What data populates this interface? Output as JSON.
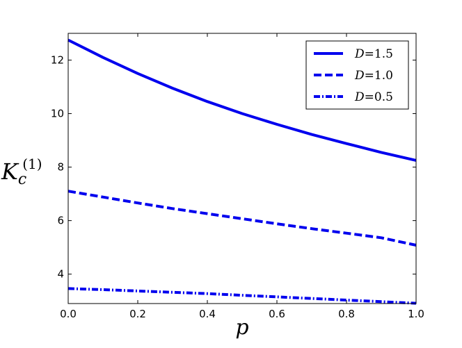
{
  "chart_data": {
    "type": "line",
    "title": "",
    "xlabel": "p",
    "ylabel": {
      "main": "K",
      "sub": "c",
      "sup": "(1)"
    },
    "xlim": [
      0.0,
      1.0
    ],
    "ylim": [
      2.9,
      13.0
    ],
    "xticks": [
      "0.0",
      "0.2",
      "0.4",
      "0.6",
      "0.8",
      "1.0"
    ],
    "yticks": [
      "4",
      "6",
      "8",
      "10",
      "12"
    ],
    "grid": false,
    "legend_position": "top-right",
    "color": "#0000ee",
    "x": [
      0.0,
      0.1,
      0.2,
      0.3,
      0.4,
      0.5,
      0.6,
      0.7,
      0.8,
      0.9,
      1.0
    ],
    "series": [
      {
        "name": "D = 1.5",
        "legend": {
          "var": "D",
          "eq": "=",
          "val": "1.5"
        },
        "style": "solid",
        "values": [
          12.75,
          12.1,
          11.5,
          10.95,
          10.45,
          10.0,
          9.6,
          9.22,
          8.88,
          8.55,
          8.25
        ]
      },
      {
        "name": "D = 1.0",
        "legend": {
          "var": "D",
          "eq": "=",
          "val": "1.0"
        },
        "style": "dashed",
        "values": [
          7.1,
          6.88,
          6.66,
          6.45,
          6.26,
          6.07,
          5.88,
          5.7,
          5.53,
          5.36,
          5.08
        ]
      },
      {
        "name": "D = 0.5",
        "legend": {
          "var": "D",
          "eq": "=",
          "val": "0.5"
        },
        "style": "dashdot",
        "values": [
          3.46,
          3.42,
          3.37,
          3.32,
          3.27,
          3.21,
          3.15,
          3.09,
          3.03,
          2.97,
          2.91
        ]
      }
    ]
  }
}
